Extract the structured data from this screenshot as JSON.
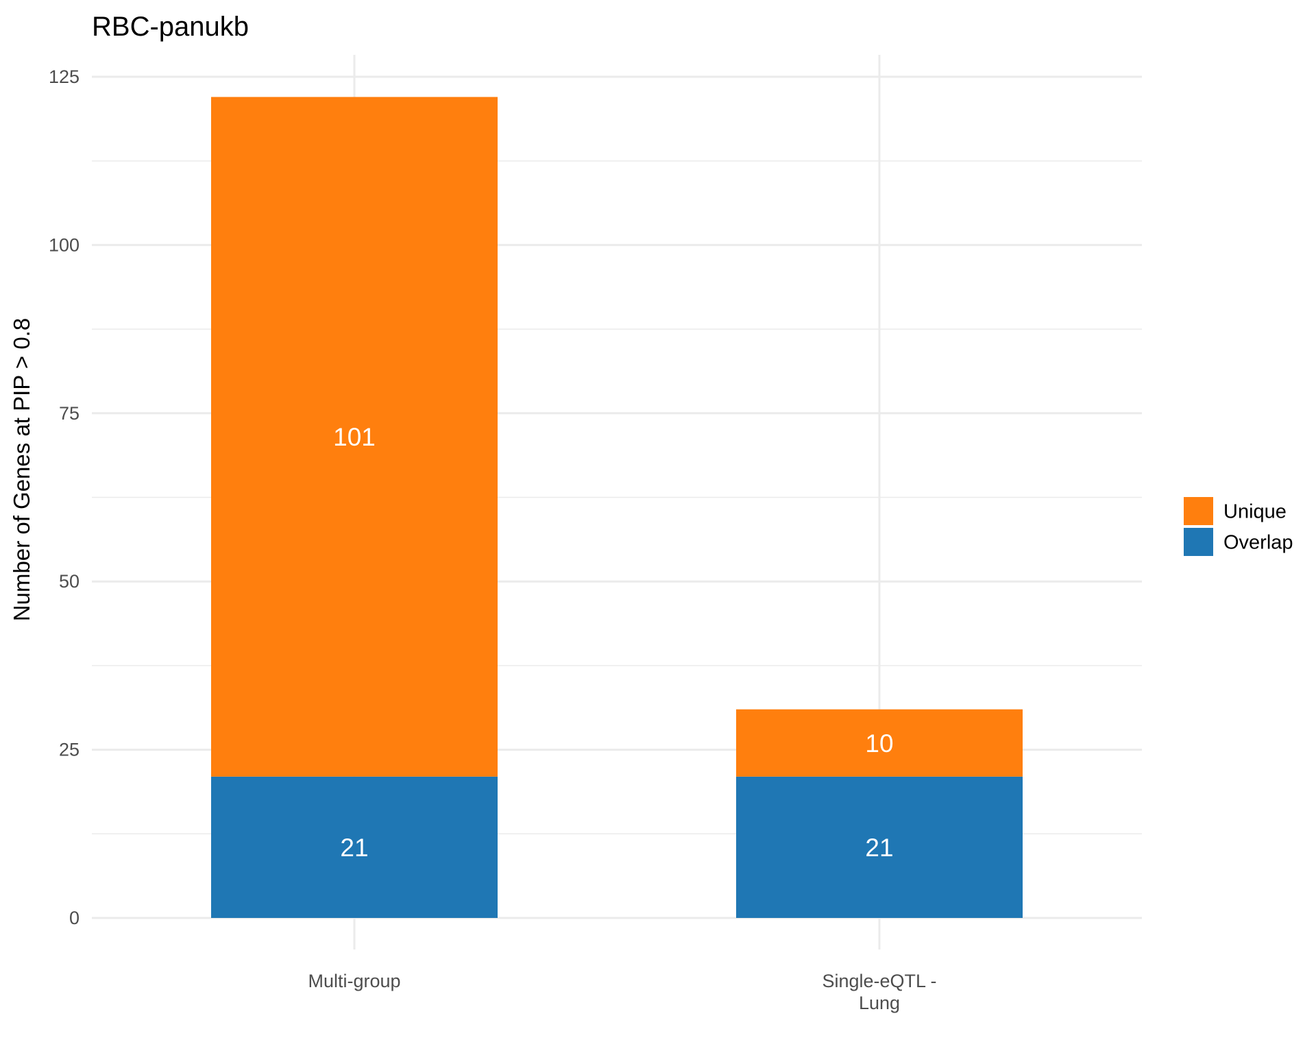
{
  "chart_data": {
    "type": "bar",
    "stacked": true,
    "title": "RBC-panukb",
    "xlabel": "",
    "ylabel": "Number of Genes at PIP > 0.8",
    "ylim": [
      0,
      125
    ],
    "yticks": [
      0,
      25,
      50,
      75,
      100,
      125
    ],
    "grid": true,
    "legend_position": "right",
    "categories": [
      {
        "id": "multi-group",
        "lines": [
          "Multi-group"
        ]
      },
      {
        "id": "single-eqtl-lung",
        "lines": [
          "Single-eQTL -",
          "Lung"
        ]
      }
    ],
    "series": [
      {
        "name": "Overlap",
        "color": "#1f77b4",
        "values": [
          21,
          21
        ]
      },
      {
        "name": "Unique",
        "color": "#ff7f0e",
        "values": [
          101,
          10
        ]
      }
    ],
    "legend_order": [
      "Unique",
      "Overlap"
    ]
  }
}
